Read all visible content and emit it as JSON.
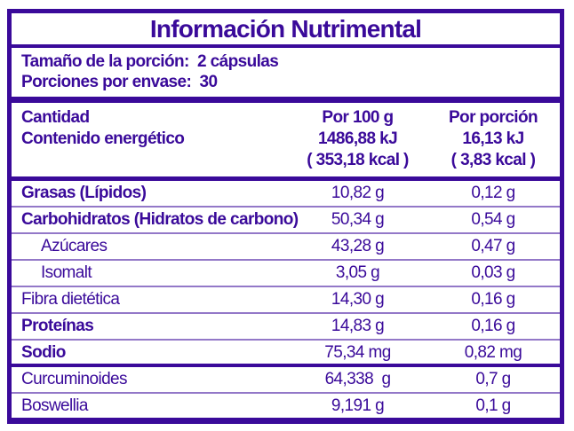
{
  "colors": {
    "purple": "#3A0A9A",
    "background": "#FFFFFF"
  },
  "title": "Información Nutrimental",
  "serving": {
    "line1": "Tamaño de la porción:  2 cápsulas",
    "line2": "Porciones por envase:  30"
  },
  "header": {
    "col1_line1": "Cantidad",
    "col1_line2": "Contenido energético",
    "col2_line1": "Por 100 g",
    "col2_line2": "1486,88 kJ",
    "col2_line3": "( 353,18 kcal )",
    "col3_line1": "Por porción",
    "col3_line2": "16,13 kJ",
    "col3_line3": "( 3,83 kcal )"
  },
  "rows": [
    {
      "label": "Grasas (Lípidos)",
      "per100": "10,82 g",
      "per_portion": "0,12 g"
    },
    {
      "label": "Carbohidratos (Hidratos de carbono)",
      "per100": "50,34 g",
      "per_portion": "0,54 g"
    },
    {
      "label": "Azúcares",
      "per100": "43,28 g",
      "per_portion": "0,47 g"
    },
    {
      "label": "Isomalt",
      "per100": "3,05 g",
      "per_portion": "0,03 g"
    },
    {
      "label": "Fibra dietética",
      "per100": "14,30 g",
      "per_portion": "0,16 g"
    },
    {
      "label": "Proteínas",
      "per100": "14,83 g",
      "per_portion": "0,16 g"
    },
    {
      "label": "Sodio",
      "per100": "75,34 mg",
      "per_portion": "0,82 mg"
    },
    {
      "label": "Curcuminoides",
      "per100": "64,338  g",
      "per_portion": "0,7 g"
    },
    {
      "label": "Boswellia",
      "per100": "9,191 g",
      "per_portion": "0,1 g"
    }
  ]
}
